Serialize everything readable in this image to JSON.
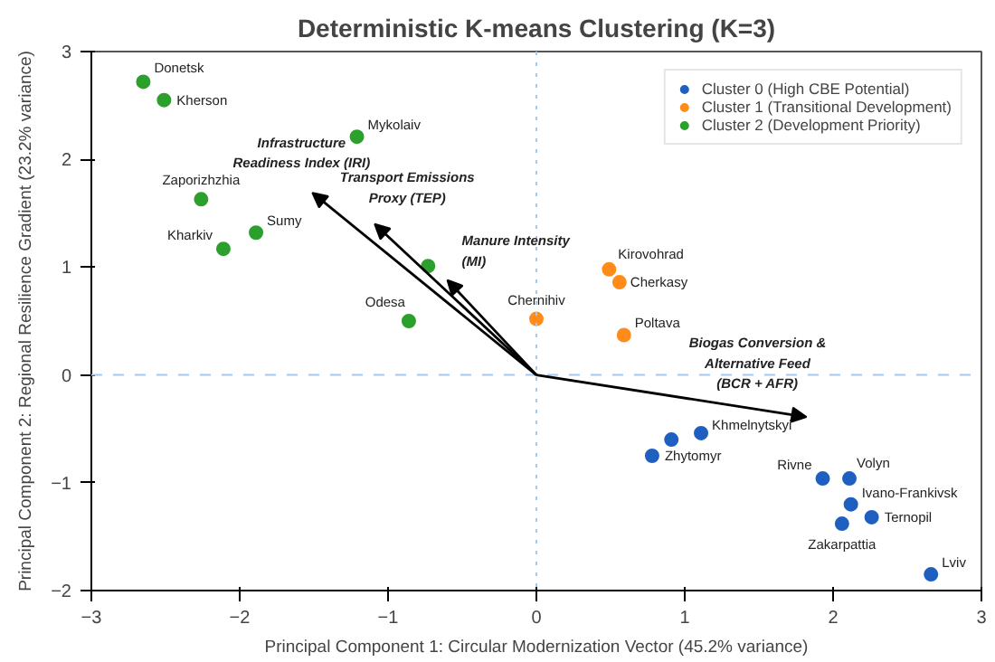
{
  "chart_data": {
    "type": "scatter",
    "title": "Deterministic K-means Clustering (K=3)",
    "xlabel": "Principal Component 1: Circular Modernization Vector (45.2% variance)",
    "ylabel": "Principal Component 2: Regional Resilience Gradient (23.2% variance)",
    "xlim": [
      -3,
      3
    ],
    "ylim": [
      -2,
      3
    ],
    "xticks": [
      -3,
      -2,
      -1,
      0,
      1,
      2,
      3
    ],
    "yticks": [
      -2,
      -1,
      0,
      1,
      2,
      3
    ],
    "grid": false,
    "legend": "top right",
    "marker": "circle",
    "ref_lines": [
      {
        "axis": "x",
        "value": 0,
        "color": "#a8c8f0",
        "line_style": "dotted"
      },
      {
        "axis": "y",
        "value": 0,
        "color": "#a8c8f0",
        "line_style": "dashed"
      }
    ],
    "series": [
      {
        "name": "Cluster 0 (High CBE Potential)",
        "color": "#1f5fbf",
        "x": [
          0.91,
          1.11,
          0.78,
          1.93,
          2.11,
          2.12,
          2.26,
          2.06,
          2.66
        ],
        "values": [
          -0.6,
          -0.54,
          -0.75,
          -0.96,
          -0.96,
          -1.2,
          -1.32,
          -1.38,
          -1.85
        ]
      },
      {
        "name": "Cluster 1 (Transitional Development)",
        "color": "#ff8c1a",
        "x": [
          0.0,
          0.49,
          0.56,
          0.59
        ],
        "values": [
          0.52,
          0.98,
          0.86,
          0.37
        ]
      },
      {
        "name": "Cluster 2 (Development Priority)",
        "color": "#2ca02c",
        "x": [
          -2.65,
          -2.51,
          -1.21,
          -2.26,
          -2.11,
          -1.89,
          -0.73,
          -0.86
        ],
        "values": [
          2.72,
          2.55,
          2.21,
          1.63,
          1.17,
          1.32,
          1.01,
          0.5
        ]
      }
    ],
    "annotations": [
      {
        "text": "Khmelnytskyi",
        "x": 1.11,
        "y": -0.54
      },
      {
        "text": "Zhytomyr",
        "x": 0.78,
        "y": -0.75
      },
      {
        "text": "Rivne",
        "x": 1.93,
        "y": -0.96
      },
      {
        "text": "Volyn",
        "x": 2.11,
        "y": -0.96
      },
      {
        "text": "Ivano-Frankivsk",
        "x": 2.12,
        "y": -1.2
      },
      {
        "text": "Ternopil",
        "x": 2.26,
        "y": -1.32
      },
      {
        "text": "Zakarpattia",
        "x": 2.06,
        "y": -1.38
      },
      {
        "text": "Lviv",
        "x": 2.66,
        "y": -1.85
      },
      {
        "text": "Chernihiv",
        "x": 0.0,
        "y": 0.52
      },
      {
        "text": "Kirovohrad",
        "x": 0.49,
        "y": 0.98
      },
      {
        "text": "Cherkasy",
        "x": 0.56,
        "y": 0.86
      },
      {
        "text": "Poltava",
        "x": 0.59,
        "y": 0.37
      },
      {
        "text": "Donetsk",
        "x": -2.65,
        "y": 2.72
      },
      {
        "text": "Kherson",
        "x": -2.51,
        "y": 2.55
      },
      {
        "text": "Mykolaiv",
        "x": -1.21,
        "y": 2.21
      },
      {
        "text": "Zaporizhzhia",
        "x": -2.26,
        "y": 1.63
      },
      {
        "text": "Kharkiv",
        "x": -2.11,
        "y": 1.17
      },
      {
        "text": "Sumy",
        "x": -1.89,
        "y": 1.32
      },
      {
        "text": "Odesa",
        "x": -0.86,
        "y": 0.5
      },
      "Infrastructure\nReadiness Index (IRI)",
      "Transport Emissions\nProxy (TEP)",
      "Manure Intensity\n(MI)",
      "Biogas Conversion &\nAlternative Feed\n(BCR + AFR)"
    ]
  }
}
